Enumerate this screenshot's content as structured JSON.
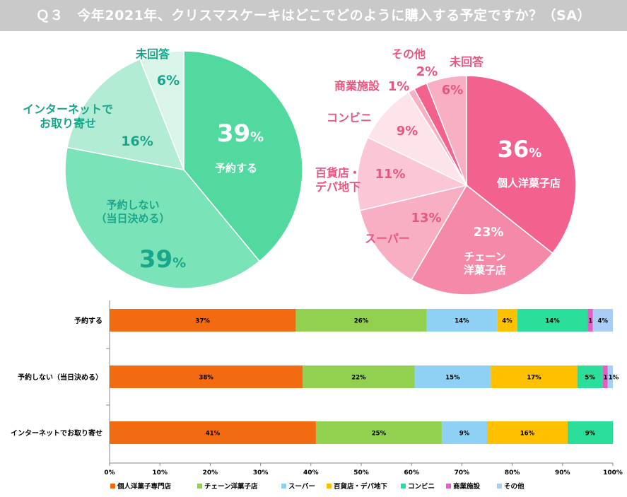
{
  "header": {
    "title": "Ｑ３　今年2021年、クリスマスケーキはどこでどのように購入する予定ですか？（SA）"
  },
  "colors": {
    "header_bg": "#c9c9c9",
    "green_text": "#1aa68a",
    "pink_text": "#e8577f"
  },
  "chart_data": [
    {
      "type": "pie",
      "title": "",
      "slices": [
        {
          "label": "予約する",
          "value": 39,
          "display": "39",
          "unit": "%",
          "color": "#52d9a0"
        },
        {
          "label": "予約しない\n（当日決める）",
          "value": 39,
          "display": "39",
          "unit": "%",
          "color": "#7be3b8"
        },
        {
          "label": "インターネットで\nお取り寄せ",
          "value": 16,
          "display": "16%",
          "unit": "",
          "color": "#b3ecd4"
        },
        {
          "label": "未回答",
          "value": 6,
          "display": "6%",
          "unit": "",
          "color": "#d9f5ea"
        }
      ]
    },
    {
      "type": "pie",
      "title": "",
      "slices": [
        {
          "label": "個人洋菓子店",
          "value": 36,
          "display": "36",
          "unit": "%",
          "color": "#f3628f"
        },
        {
          "label": "チェーン\n洋菓子店",
          "value": 23,
          "display": "23%",
          "unit": "",
          "color": "#f48aa8"
        },
        {
          "label": "スーパー",
          "value": 13,
          "display": "13%",
          "unit": "",
          "color": "#f8aec3"
        },
        {
          "label": "百貨店・\nデパ地下",
          "value": 11,
          "display": "11%",
          "unit": "",
          "color": "#fbc6d5"
        },
        {
          "label": "コンビニ",
          "value": 9,
          "display": "9%",
          "unit": "",
          "color": "#fde3ea"
        },
        {
          "label": "商業施設",
          "value": 1,
          "display": "1%",
          "unit": "",
          "color": "#f8aec3"
        },
        {
          "label": "その他",
          "value": 2,
          "display": "2%",
          "unit": "",
          "color": "#f2628d"
        },
        {
          "label": "未回答",
          "value": 6,
          "display": "6%",
          "unit": "",
          "color": "#f8aec3"
        }
      ]
    },
    {
      "type": "bar",
      "orientation": "horizontal",
      "stacked": true,
      "categories": [
        "予約する",
        "予約しない（当日決める）",
        "インターネットでお取り寄せ"
      ],
      "series": [
        {
          "name": "個人洋菓子専門店",
          "color": "#f26b11",
          "values": [
            37,
            38,
            41
          ],
          "labels": [
            "37%",
            "38%",
            "41%"
          ]
        },
        {
          "name": "チェーン洋菓子店",
          "color": "#92d050",
          "values": [
            26,
            22,
            25
          ],
          "labels": [
            "26%",
            "22%",
            "25%"
          ]
        },
        {
          "name": "スーパー",
          "color": "#8ed1f5",
          "values": [
            14,
            15,
            9
          ],
          "labels": [
            "14%",
            "15%",
            "9%"
          ]
        },
        {
          "name": "百貨店・デパ地下",
          "color": "#ffc000",
          "values": [
            4,
            17,
            16
          ],
          "labels": [
            "4%",
            "17%",
            "16%"
          ]
        },
        {
          "name": "コンビニ",
          "color": "#2bdf9b",
          "values": [
            14,
            5,
            9
          ],
          "labels": [
            "14%",
            "5%",
            "9%"
          ]
        },
        {
          "name": "商業施設",
          "color": "#e75cc4",
          "values": [
            1,
            1,
            0
          ],
          "labels": [
            "1%",
            "1%",
            ""
          ]
        },
        {
          "name": "その他",
          "color": "#a9cdf4",
          "values": [
            4,
            1,
            0
          ],
          "labels": [
            "4%",
            "1%",
            ""
          ]
        }
      ],
      "xlim": [
        0,
        100
      ],
      "xticks": [
        "0%",
        "10%",
        "20%",
        "30%",
        "40%",
        "50%",
        "60%",
        "70%",
        "80%",
        "90%",
        "100%"
      ],
      "legend": "bottom"
    }
  ]
}
